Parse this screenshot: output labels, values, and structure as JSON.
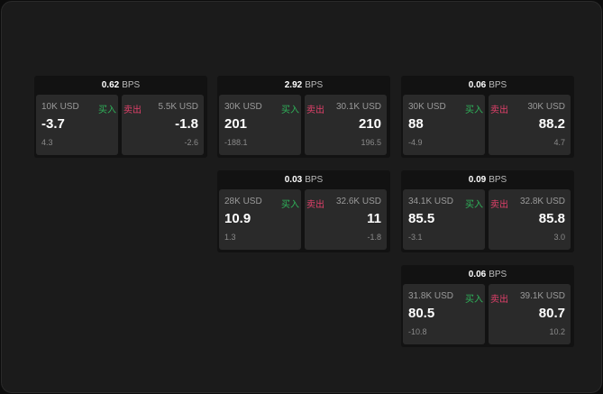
{
  "cards": [
    {
      "bps": "0.62",
      "unit": "BPS",
      "bid": {
        "size": "10K USD",
        "side": "买入",
        "price": "-3.7",
        "change": "4.3"
      },
      "ask": {
        "size": "5.5K USD",
        "side": "卖出",
        "price": "-1.8",
        "change": "-2.6"
      }
    },
    {
      "bps": "2.92",
      "unit": "BPS",
      "bid": {
        "size": "30K USD",
        "side": "买入",
        "price": "201",
        "change": "-188.1"
      },
      "ask": {
        "size": "30.1K USD",
        "side": "卖出",
        "price": "210",
        "change": "196.5"
      }
    },
    {
      "bps": "0.06",
      "unit": "BPS",
      "bid": {
        "size": "30K USD",
        "side": "买入",
        "price": "88",
        "change": "-4.9"
      },
      "ask": {
        "size": "30K USD",
        "side": "卖出",
        "price": "88.2",
        "change": "4.7"
      }
    },
    {
      "bps": "0.03",
      "unit": "BPS",
      "bid": {
        "size": "28K USD",
        "side": "买入",
        "price": "10.9",
        "change": "1.3"
      },
      "ask": {
        "size": "32.6K USD",
        "side": "卖出",
        "price": "11",
        "change": "-1.8"
      }
    },
    {
      "bps": "0.09",
      "unit": "BPS",
      "bid": {
        "size": "34.1K USD",
        "side": "买入",
        "price": "85.5",
        "change": "-3.1"
      },
      "ask": {
        "size": "32.8K USD",
        "side": "卖出",
        "price": "85.8",
        "change": "3.0"
      }
    },
    {
      "bps": "0.06",
      "unit": "BPS",
      "bid": {
        "size": "31.8K USD",
        "side": "买入",
        "price": "80.5",
        "change": "-10.8"
      },
      "ask": {
        "size": "39.1K USD",
        "side": "卖出",
        "price": "80.7",
        "change": "10.2"
      }
    }
  ],
  "colors": {
    "buy": "#2fb35a",
    "sell": "#e0406a"
  }
}
